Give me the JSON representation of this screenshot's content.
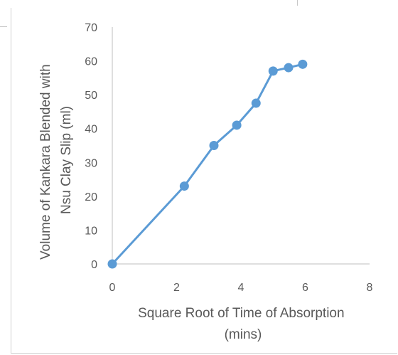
{
  "chart_data": {
    "type": "line",
    "title": "",
    "xlabel_lines": [
      "Square Root of Time of Absorption",
      "(mins)"
    ],
    "ylabel_lines": [
      "Volume of Kankara Blended with",
      "Nsu Clay Slip (ml)"
    ],
    "xlim": [
      0,
      8
    ],
    "ylim": [
      0,
      70
    ],
    "xticks": [
      0,
      2,
      4,
      6,
      8
    ],
    "yticks": [
      0,
      10,
      20,
      30,
      40,
      50,
      60,
      70
    ],
    "grid": false,
    "legend": "none",
    "series": [
      {
        "color": "#5b9bd5",
        "points": [
          {
            "x": 0,
            "y": 0
          },
          {
            "x": 2.24,
            "y": 23
          },
          {
            "x": 3.16,
            "y": 35
          },
          {
            "x": 3.87,
            "y": 41
          },
          {
            "x": 4.47,
            "y": 47.5
          },
          {
            "x": 5.0,
            "y": 57
          },
          {
            "x": 5.48,
            "y": 58
          },
          {
            "x": 5.92,
            "y": 59
          }
        ]
      }
    ]
  }
}
